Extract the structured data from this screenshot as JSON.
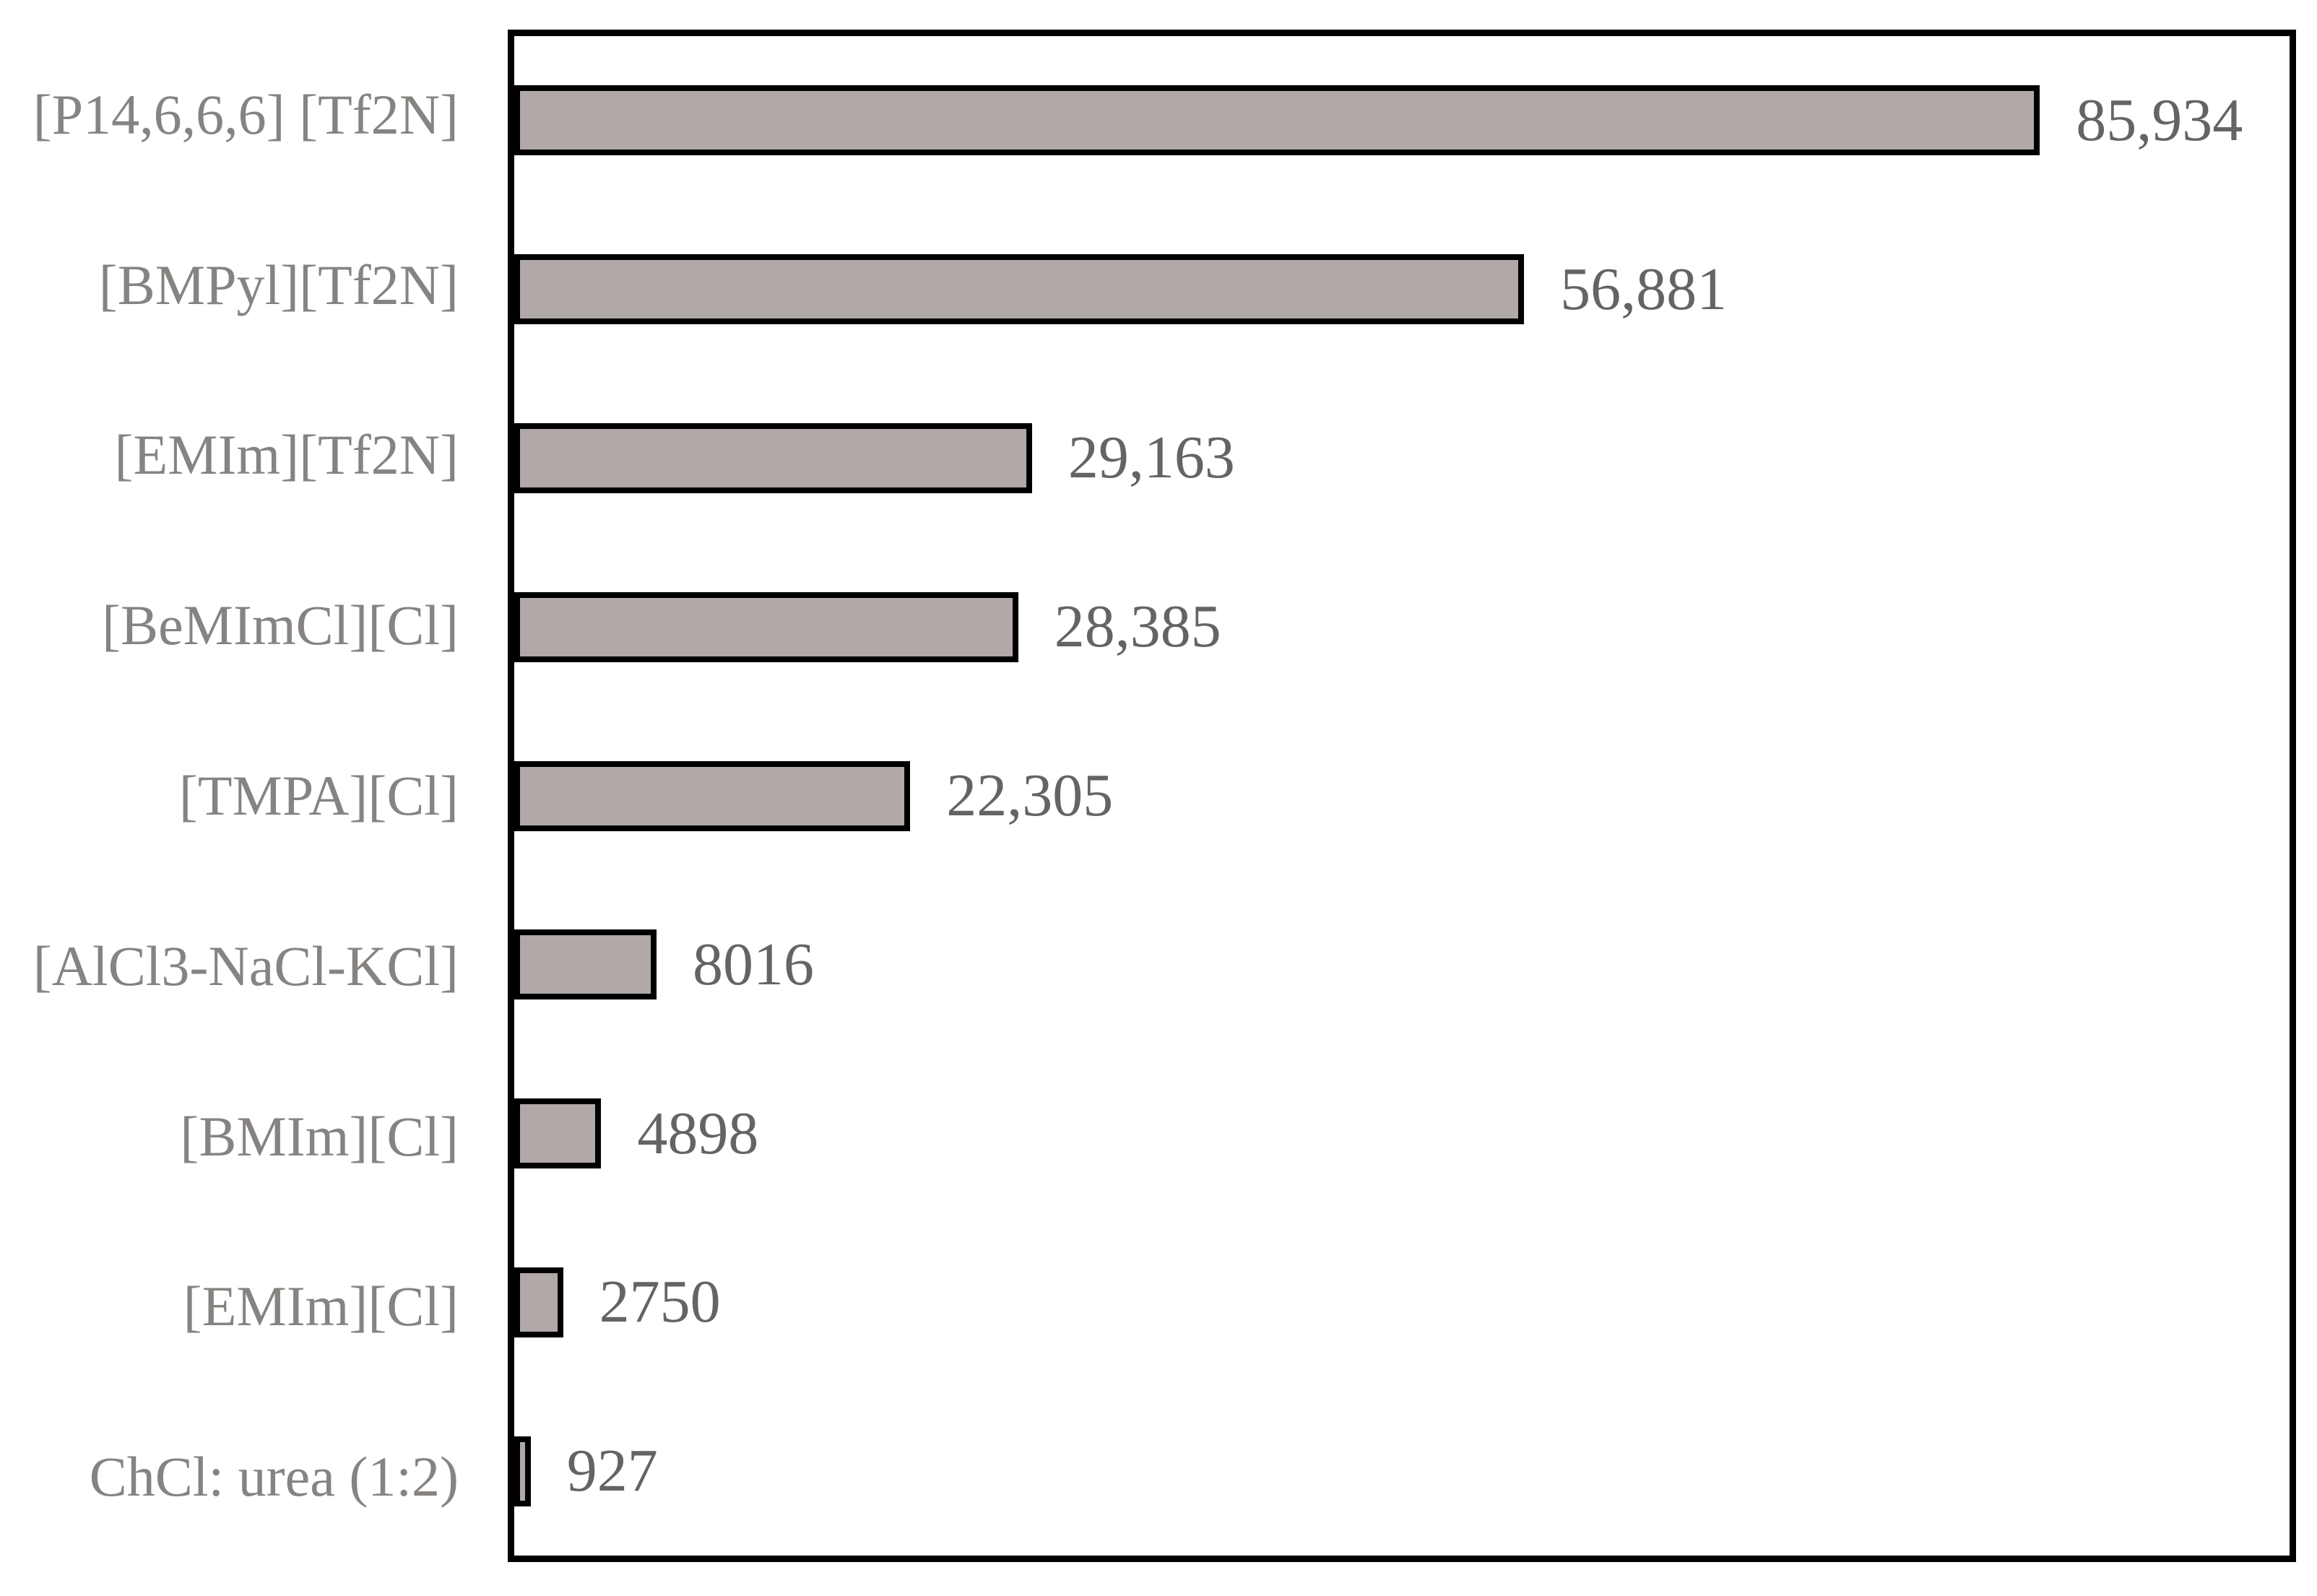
{
  "chart_data": {
    "type": "bar",
    "orientation": "horizontal",
    "title": "",
    "xlabel": "",
    "ylabel": "",
    "xlim": [
      0,
      100000
    ],
    "grid": false,
    "legend": false,
    "categories": [
      "[P14,6,6,6] [Tf2N]",
      "[BMPyl][Tf2N]",
      "[EMIm][Tf2N]",
      "[BeMImCl][Cl]",
      "[TMPA][Cl]",
      "[AlCl3-NaCl-KCl]",
      "[BMIm][Cl]",
      "[EMIm][Cl]",
      "ChCl: urea (1:2)"
    ],
    "values": [
      85934,
      56881,
      29163,
      28385,
      22305,
      8016,
      4898,
      2750,
      927
    ],
    "value_labels": [
      "85,934",
      "56,881",
      "29,163",
      "28,385",
      "22,305",
      "8016",
      "4898",
      "2750",
      "927"
    ],
    "colors": {
      "bar_fill": "#b0a9a7",
      "bar_border": "#000000",
      "plot_border": "#000000",
      "category_label": "#868380",
      "value_label": "#666462",
      "background": "#ffffff"
    }
  }
}
